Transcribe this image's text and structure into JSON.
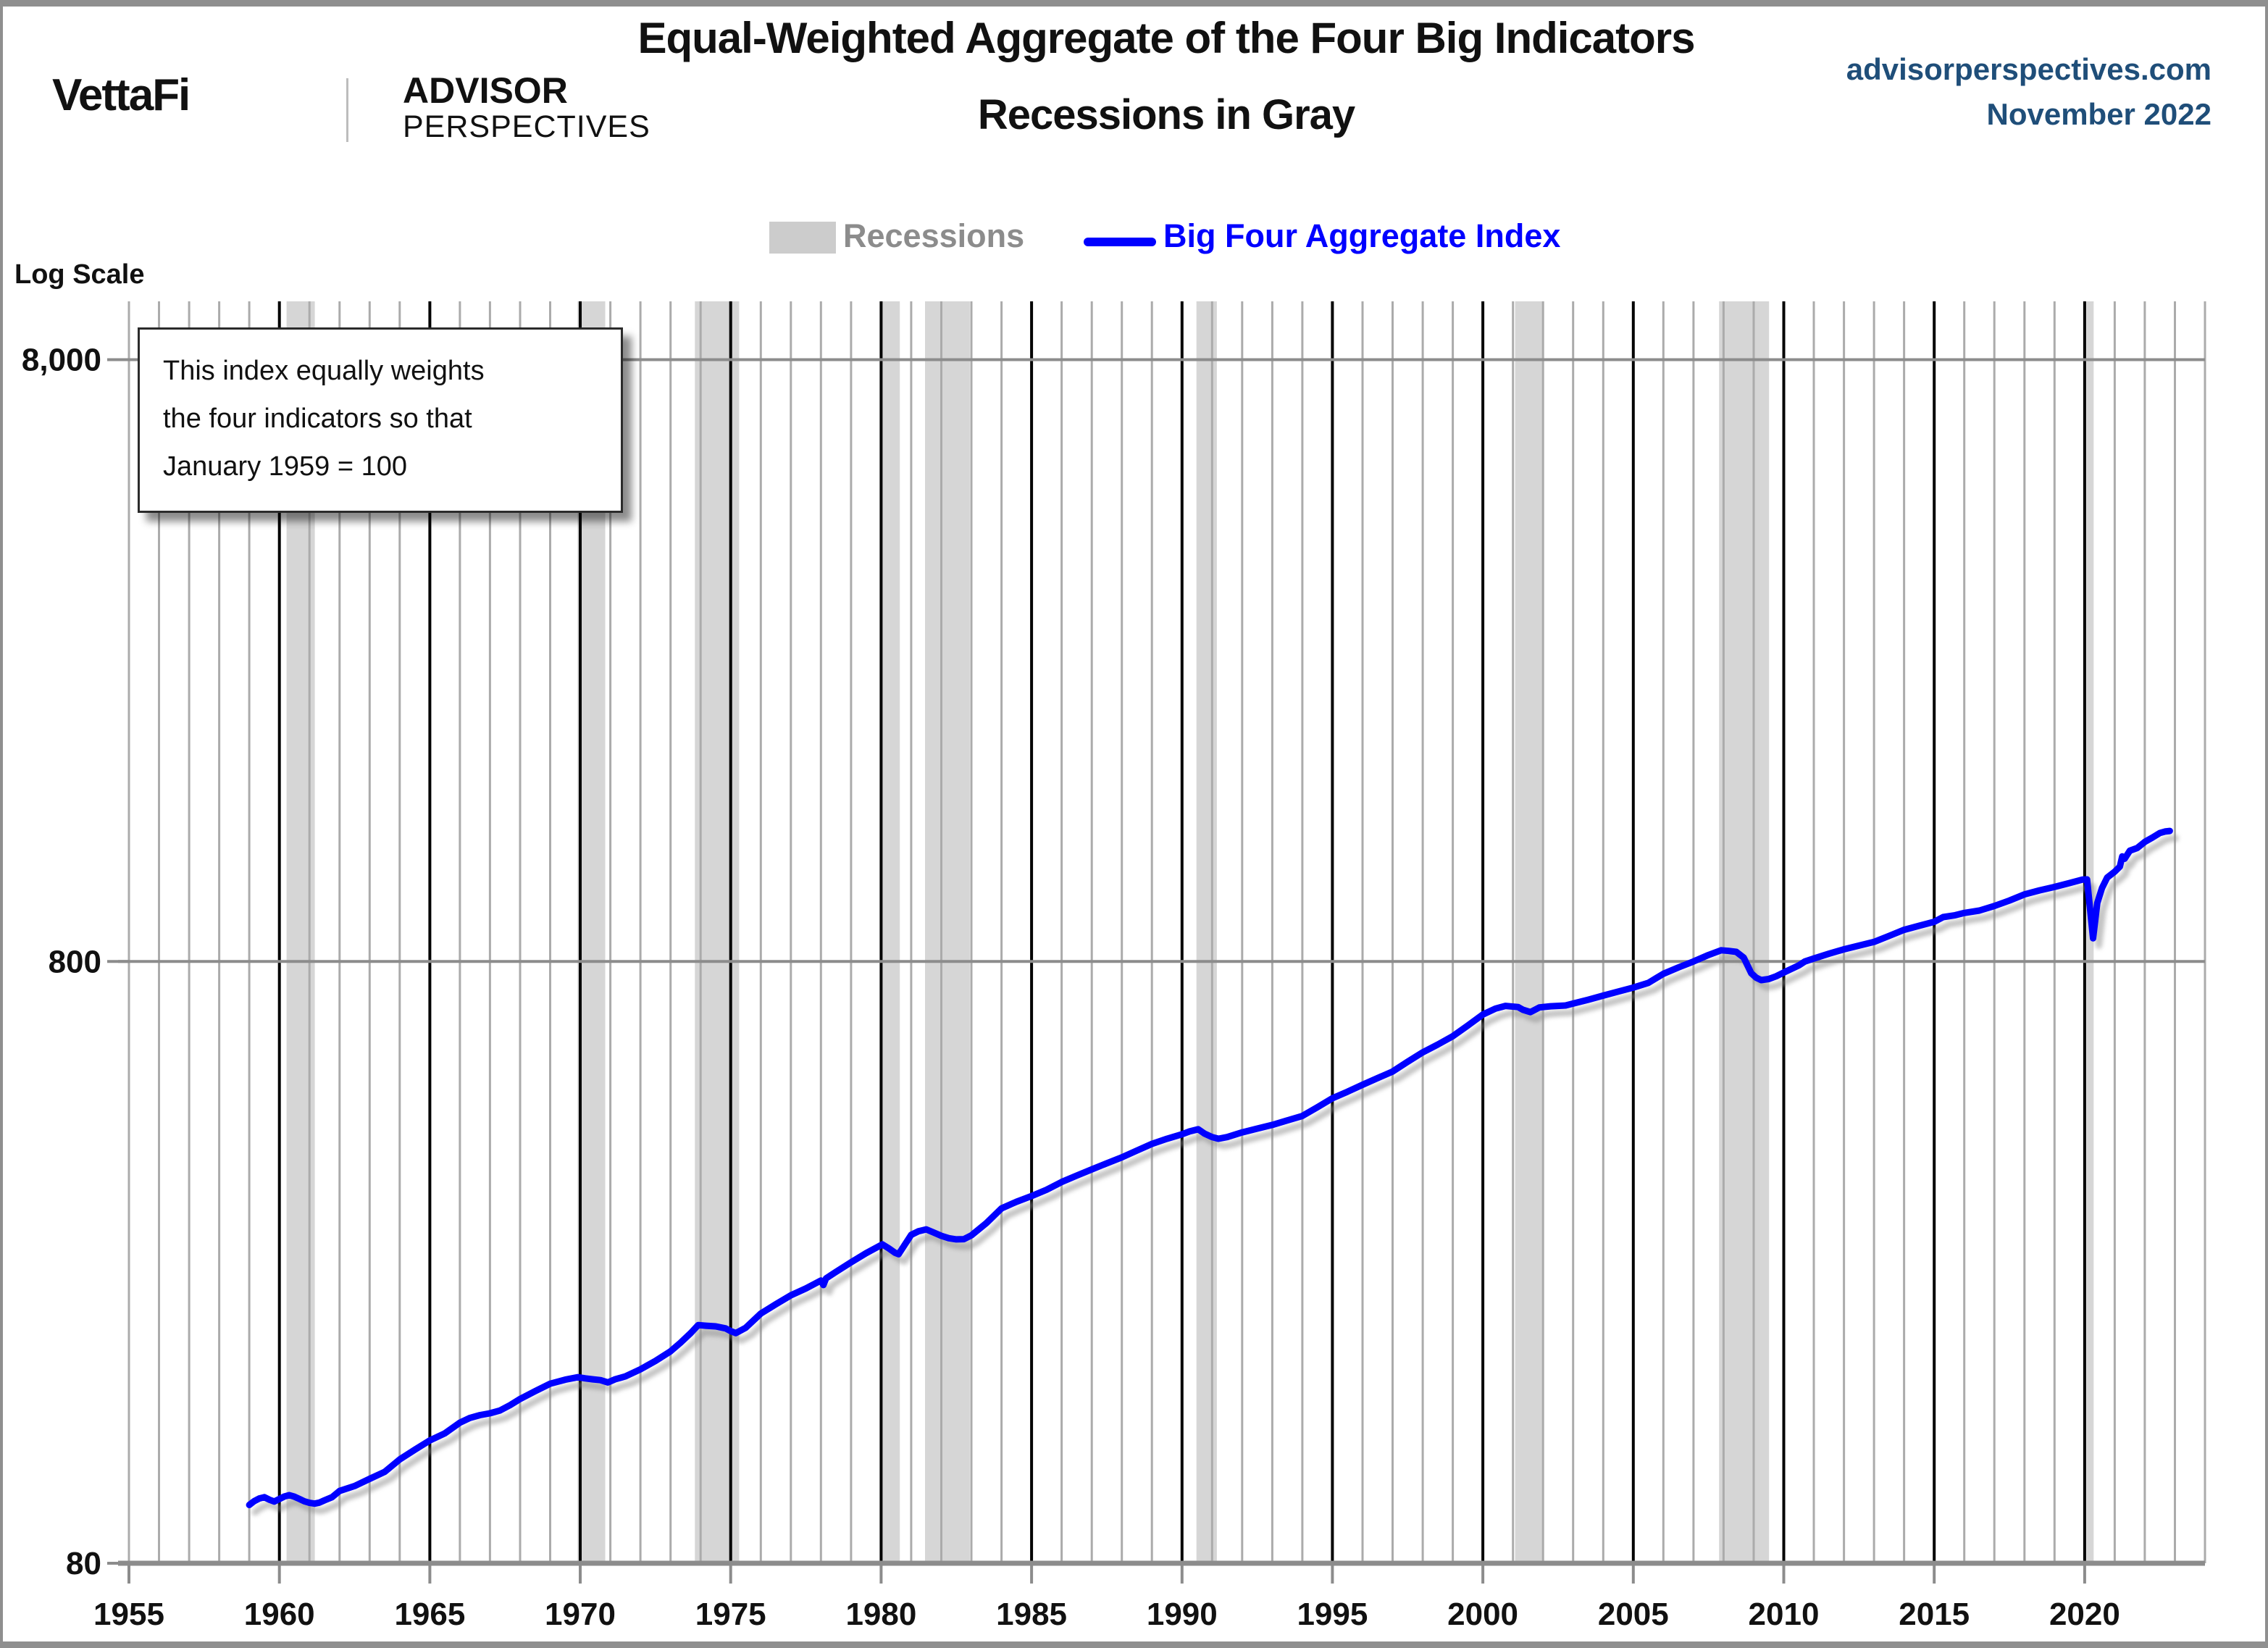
{
  "header": {
    "logo_primary": "VettaFi",
    "logo_secondary_line1": "ADVISOR",
    "logo_secondary_line2": "PERSPECTIVES",
    "title_line1": "Equal-Weighted Aggregate of the Four Big Indicators",
    "title_line2": "Recessions in Gray",
    "source_site": "advisorperspectives.com",
    "source_date": "November 2022",
    "accent_color": "#1f4e79"
  },
  "legend": {
    "recessions_label": "Recessions",
    "series_label": "Big Four Aggregate Index",
    "recessions_color": "#cccccc",
    "series_color": "#0000ff"
  },
  "axis_note": "Log Scale",
  "annotation": {
    "line1": "This index equally weights",
    "line2": "the four indicators  so that",
    "line3": "January 1959 = 100"
  },
  "chart_data": {
    "type": "line",
    "log_scale": true,
    "title": "Equal-Weighted Aggregate of the Four Big Indicators",
    "subtitle": "Recessions in Gray",
    "legend_position": "top-center",
    "grid": true,
    "x_range": [
      1955,
      2024
    ],
    "y_log_range": [
      80,
      10000
    ],
    "x_ticks": [
      1955,
      1960,
      1965,
      1970,
      1975,
      1980,
      1985,
      1990,
      1995,
      2000,
      2005,
      2010,
      2015,
      2020
    ],
    "y_ticks": [
      {
        "value": 8000,
        "label": "8,000"
      },
      {
        "value": 800,
        "label": "800"
      },
      {
        "value": 80,
        "label": "80"
      }
    ],
    "recessions": [
      [
        1960.24,
        1961.18
      ],
      [
        1969.91,
        1970.83
      ],
      [
        1973.81,
        1975.28
      ],
      [
        1979.99,
        1980.62
      ],
      [
        1981.46,
        1982.95
      ],
      [
        1990.48,
        1991.16
      ],
      [
        2001.07,
        2001.98
      ],
      [
        2007.85,
        2009.51
      ],
      [
        2020.06,
        2020.3
      ]
    ],
    "colors": {
      "series": "#0000ff",
      "recession_band": "#d6d6d6",
      "year_gridline": "#ababab",
      "five_year_gridline": "#000000",
      "value_gridline": "#8c8c8c",
      "axis": "#8c8c8c",
      "tick_label": "#111111"
    },
    "series": [
      {
        "name": "Big Four Aggregate Index",
        "points": [
          [
            1959.0,
            100
          ],
          [
            1959.17,
            101.5
          ],
          [
            1959.33,
            102.5
          ],
          [
            1959.5,
            103
          ],
          [
            1959.67,
            102
          ],
          [
            1959.83,
            101.3
          ],
          [
            1960.0,
            102.3
          ],
          [
            1960.17,
            103.3
          ],
          [
            1960.33,
            103.8
          ],
          [
            1960.5,
            103.2
          ],
          [
            1960.67,
            102.3
          ],
          [
            1960.83,
            101.4
          ],
          [
            1961.0,
            100.8
          ],
          [
            1961.17,
            100.5
          ],
          [
            1961.33,
            100.9
          ],
          [
            1961.5,
            101.8
          ],
          [
            1961.75,
            103
          ],
          [
            1962.0,
            105.5
          ],
          [
            1962.5,
            107.5
          ],
          [
            1963.0,
            110.5
          ],
          [
            1963.5,
            113.5
          ],
          [
            1964.0,
            119
          ],
          [
            1964.5,
            123.5
          ],
          [
            1965.0,
            128
          ],
          [
            1965.5,
            131.5
          ],
          [
            1966.0,
            137
          ],
          [
            1966.33,
            139.5
          ],
          [
            1966.67,
            141
          ],
          [
            1967.0,
            142
          ],
          [
            1967.33,
            143.5
          ],
          [
            1967.67,
            146.5
          ],
          [
            1968.0,
            150
          ],
          [
            1968.5,
            154.5
          ],
          [
            1969.0,
            159
          ],
          [
            1969.5,
            161.5
          ],
          [
            1969.92,
            163
          ],
          [
            1970.17,
            162.3
          ],
          [
            1970.42,
            161.7
          ],
          [
            1970.67,
            161.2
          ],
          [
            1970.92,
            159.8
          ],
          [
            1971.17,
            161.8
          ],
          [
            1971.5,
            163.5
          ],
          [
            1972.0,
            168
          ],
          [
            1972.5,
            173.5
          ],
          [
            1973.0,
            180
          ],
          [
            1973.33,
            186
          ],
          [
            1973.67,
            193
          ],
          [
            1973.92,
            199
          ],
          [
            1974.17,
            198.5
          ],
          [
            1974.5,
            198
          ],
          [
            1974.83,
            196.5
          ],
          [
            1975.0,
            194.5
          ],
          [
            1975.17,
            193
          ],
          [
            1975.5,
            197
          ],
          [
            1976.0,
            208
          ],
          [
            1976.5,
            215.5
          ],
          [
            1977.0,
            223
          ],
          [
            1977.5,
            229
          ],
          [
            1978.0,
            236
          ],
          [
            1978.08,
            232
          ],
          [
            1978.17,
            238
          ],
          [
            1978.5,
            244
          ],
          [
            1979.0,
            253
          ],
          [
            1979.5,
            262
          ],
          [
            1980.04,
            271
          ],
          [
            1980.25,
            267
          ],
          [
            1980.46,
            262.5
          ],
          [
            1980.58,
            261
          ],
          [
            1981.0,
            281
          ],
          [
            1981.25,
            285
          ],
          [
            1981.5,
            287
          ],
          [
            1981.75,
            283.5
          ],
          [
            1982.0,
            280
          ],
          [
            1982.25,
            277.5
          ],
          [
            1982.5,
            276.2
          ],
          [
            1982.75,
            276.5
          ],
          [
            1983.0,
            280.5
          ],
          [
            1983.5,
            294
          ],
          [
            1984.0,
            311
          ],
          [
            1984.5,
            319
          ],
          [
            1985.0,
            326
          ],
          [
            1985.5,
            334
          ],
          [
            1986.0,
            344
          ],
          [
            1986.5,
            352.5
          ],
          [
            1987.0,
            361
          ],
          [
            1987.5,
            369.5
          ],
          [
            1988.0,
            378
          ],
          [
            1988.5,
            388
          ],
          [
            1989.0,
            398
          ],
          [
            1989.5,
            406
          ],
          [
            1990.0,
            413
          ],
          [
            1990.25,
            417.5
          ],
          [
            1990.54,
            421
          ],
          [
            1990.75,
            414
          ],
          [
            1991.0,
            408.5
          ],
          [
            1991.21,
            406
          ],
          [
            1991.5,
            408.5
          ],
          [
            1992.0,
            416
          ],
          [
            1992.5,
            422
          ],
          [
            1993.0,
            428
          ],
          [
            1993.5,
            435.5
          ],
          [
            1994.0,
            443
          ],
          [
            1994.5,
            458
          ],
          [
            1995.0,
            474
          ],
          [
            1995.5,
            486
          ],
          [
            1996.0,
            499
          ],
          [
            1996.5,
            512
          ],
          [
            1997.0,
            525
          ],
          [
            1997.5,
            545
          ],
          [
            1998.0,
            565
          ],
          [
            1998.5,
            582
          ],
          [
            1999.0,
            601
          ],
          [
            1999.5,
            626
          ],
          [
            2000.0,
            653
          ],
          [
            2000.42,
            668
          ],
          [
            2000.75,
            675
          ],
          [
            2001.17,
            672
          ],
          [
            2001.33,
            665
          ],
          [
            2001.58,
            659
          ],
          [
            2001.88,
            671
          ],
          [
            2002.25,
            674
          ],
          [
            2002.75,
            676
          ],
          [
            2003.0,
            681
          ],
          [
            2003.5,
            691
          ],
          [
            2004.0,
            702
          ],
          [
            2004.5,
            713
          ],
          [
            2005.0,
            724
          ],
          [
            2005.5,
            737
          ],
          [
            2006.0,
            763
          ],
          [
            2006.5,
            782
          ],
          [
            2007.0,
            800
          ],
          [
            2007.5,
            820
          ],
          [
            2007.92,
            835
          ],
          [
            2008.17,
            833
          ],
          [
            2008.42,
            830
          ],
          [
            2008.67,
            812
          ],
          [
            2008.92,
            765
          ],
          [
            2009.08,
            752
          ],
          [
            2009.25,
            745
          ],
          [
            2009.5,
            748
          ],
          [
            2009.75,
            756
          ],
          [
            2010.0,
            767
          ],
          [
            2010.5,
            788
          ],
          [
            2010.7,
            800
          ],
          [
            2011.0,
            809
          ],
          [
            2011.5,
            824
          ],
          [
            2012.0,
            838
          ],
          [
            2012.5,
            850
          ],
          [
            2013.0,
            862
          ],
          [
            2013.5,
            882
          ],
          [
            2014.0,
            903
          ],
          [
            2014.5,
            917
          ],
          [
            2015.0,
            931
          ],
          [
            2015.3,
            948
          ],
          [
            2015.7,
            955
          ],
          [
            2016.0,
            963
          ],
          [
            2016.5,
            972
          ],
          [
            2017.0,
            989
          ],
          [
            2017.5,
            1010
          ],
          [
            2018.0,
            1034
          ],
          [
            2018.5,
            1050
          ],
          [
            2019.0,
            1064
          ],
          [
            2019.5,
            1080
          ],
          [
            2019.92,
            1094
          ],
          [
            2020.08,
            1095
          ],
          [
            2020.17,
            990
          ],
          [
            2020.28,
            874
          ],
          [
            2020.42,
            1000
          ],
          [
            2020.58,
            1060
          ],
          [
            2020.75,
            1103
          ],
          [
            2021.0,
            1128
          ],
          [
            2021.17,
            1150
          ],
          [
            2021.25,
            1196
          ],
          [
            2021.33,
            1185
          ],
          [
            2021.5,
            1222
          ],
          [
            2021.75,
            1235
          ],
          [
            2022.0,
            1264
          ],
          [
            2022.25,
            1285
          ],
          [
            2022.5,
            1308
          ],
          [
            2022.67,
            1315
          ],
          [
            2022.83,
            1318
          ]
        ]
      }
    ]
  }
}
